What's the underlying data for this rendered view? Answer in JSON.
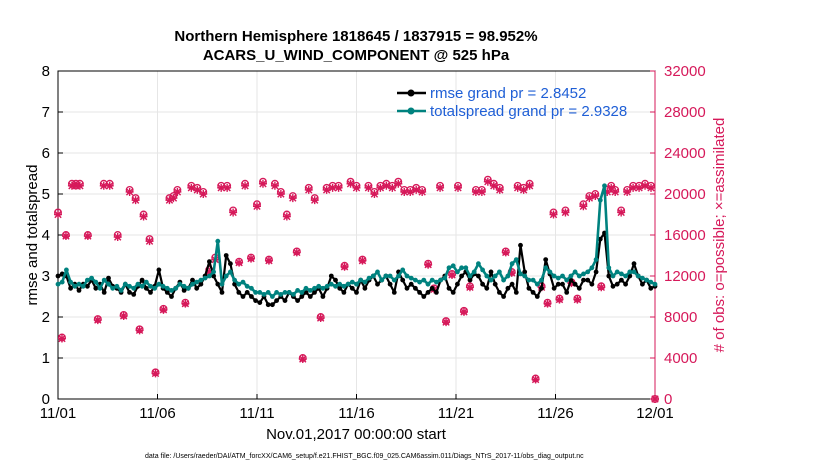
{
  "colors": {
    "rmse": "#000000",
    "spread": "#00827f",
    "obs": "#d6195a",
    "legend_text": "#1f5fd6",
    "axis": "#000000",
    "grid": "#e6e6e6"
  },
  "chart_data": {
    "type": "line",
    "title_line1": "Northern Hemisphere 1818645 / 1837915 = 98.952%",
    "title_line2": "ACARS_U_WIND_COMPONENT @ 525 hPa",
    "xlabel": "Nov.01,2017 00:00:00 start",
    "ylabel": "rmse and totalspread",
    "ylabel_right": "# of obs: o=possible; ×=assimilated",
    "xlim": [
      0,
      30
    ],
    "ylim": [
      0,
      8
    ],
    "ylim_right": [
      0,
      32000
    ],
    "xticks": [
      0,
      5,
      10,
      15,
      20,
      25,
      30
    ],
    "xtick_labels": [
      "11/01",
      "11/06",
      "11/11",
      "11/16",
      "11/21",
      "11/26",
      "12/01"
    ],
    "yticks": [
      0,
      1,
      2,
      3,
      4,
      5,
      6,
      7,
      8
    ],
    "yticks_right": [
      0,
      4000,
      8000,
      12000,
      16000,
      20000,
      24000,
      28000,
      32000
    ],
    "grid": true,
    "legend_position": "top-right",
    "series": [
      {
        "name": "rmse grand pr = 2.8452",
        "values": [
          3.0,
          3.05,
          3.0,
          2.7,
          2.8,
          2.65,
          2.8,
          2.75,
          2.9,
          2.7,
          2.8,
          2.6,
          2.95,
          2.75,
          2.7,
          2.6,
          2.8,
          2.6,
          2.55,
          2.75,
          2.9,
          2.7,
          2.6,
          2.75,
          3.15,
          2.7,
          2.6,
          2.5,
          2.7,
          2.85,
          2.65,
          2.7,
          2.9,
          2.7,
          2.8,
          3.0,
          3.35,
          3.0,
          2.8,
          2.6,
          3.5,
          3.3,
          2.8,
          2.6,
          2.5,
          2.6,
          2.5,
          2.4,
          2.35,
          2.5,
          2.3,
          2.3,
          2.4,
          2.5,
          2.4,
          2.6,
          2.5,
          2.4,
          2.5,
          2.6,
          2.5,
          2.6,
          2.7,
          2.5,
          2.7,
          3.0,
          2.9,
          2.7,
          2.6,
          2.8,
          2.7,
          2.6,
          2.9,
          2.7,
          2.9,
          3.0,
          2.8,
          2.9,
          3.0,
          2.8,
          2.6,
          3.1,
          2.9,
          2.7,
          2.8,
          2.7,
          2.6,
          2.5,
          2.6,
          2.7,
          2.6,
          2.9,
          3.0,
          2.7,
          2.6,
          2.8,
          3.0,
          3.1,
          2.9,
          3.05,
          3.0,
          2.8,
          2.7,
          3.1,
          2.8,
          2.6,
          2.5,
          2.7,
          2.8,
          2.6,
          3.75,
          3.1,
          2.7,
          2.6,
          2.5,
          2.7,
          3.4,
          3.05,
          2.7,
          2.8,
          2.8,
          2.6,
          2.9,
          2.8,
          2.7,
          2.9,
          2.9,
          2.8,
          3.1,
          3.9,
          4.05,
          3.0,
          2.75,
          2.8,
          2.9,
          2.8,
          3.0,
          3.3,
          3.0,
          2.8,
          2.9,
          2.7,
          2.75
        ],
        "color": "#000000"
      },
      {
        "name": "totalspread grand pr = 2.9328",
        "values": [
          2.8,
          2.85,
          3.15,
          2.85,
          2.75,
          2.8,
          2.75,
          2.9,
          2.95,
          2.85,
          2.7,
          2.9,
          2.8,
          2.7,
          2.75,
          2.65,
          2.8,
          2.75,
          2.7,
          2.8,
          2.75,
          2.85,
          2.75,
          2.7,
          2.8,
          2.75,
          2.7,
          2.65,
          2.7,
          2.8,
          2.75,
          2.7,
          2.8,
          2.85,
          2.9,
          2.95,
          3.0,
          3.1,
          3.85,
          2.8,
          3.0,
          3.1,
          2.9,
          2.8,
          2.85,
          2.75,
          2.7,
          2.6,
          2.6,
          2.55,
          2.6,
          2.5,
          2.6,
          2.55,
          2.6,
          2.6,
          2.55,
          2.65,
          2.6,
          2.7,
          2.65,
          2.7,
          2.75,
          2.7,
          2.75,
          2.8,
          2.75,
          2.8,
          2.75,
          2.8,
          2.85,
          2.8,
          2.9,
          2.85,
          2.95,
          3.0,
          3.1,
          2.9,
          3.0,
          3.0,
          2.9,
          3.0,
          3.15,
          3.0,
          2.95,
          2.9,
          2.85,
          2.9,
          2.8,
          2.9,
          2.85,
          2.9,
          2.95,
          3.2,
          3.25,
          3.1,
          3.2,
          3.2,
          3.0,
          3.1,
          3.3,
          3.15,
          3.0,
          2.9,
          3.0,
          3.1,
          2.9,
          3.0,
          3.3,
          3.4,
          3.05,
          3.0,
          2.9,
          2.9,
          2.8,
          2.9,
          3.2,
          3.1,
          3.0,
          2.95,
          3.0,
          2.9,
          3.0,
          3.1,
          3.0,
          3.05,
          3.1,
          3.2,
          3.4,
          4.85,
          5.2,
          3.2,
          3.0,
          3.1,
          3.05,
          3.0,
          3.1,
          3.1,
          3.0,
          2.95,
          2.9,
          2.85,
          2.8
        ],
        "color": "#00827f"
      },
      {
        "name": "obs possible (o)",
        "axis": "right",
        "x": [
          0.0,
          0.2,
          0.4,
          0.7,
          0.9,
          1.1,
          1.5,
          2.0,
          2.3,
          2.6,
          3.0,
          3.3,
          3.6,
          3.9,
          4.1,
          4.3,
          4.6,
          4.9,
          5.3,
          5.6,
          5.8,
          6.0,
          6.4,
          6.7,
          7.0,
          7.3,
          7.6,
          7.9,
          8.2,
          8.5,
          8.8,
          9.1,
          9.4,
          9.7,
          10.0,
          10.3,
          10.6,
          10.9,
          11.2,
          11.5,
          11.8,
          12.0,
          12.3,
          12.6,
          12.9,
          13.2,
          13.5,
          13.8,
          14.1,
          14.4,
          14.7,
          15.0,
          15.3,
          15.6,
          15.9,
          16.2,
          16.5,
          16.8,
          17.1,
          17.4,
          17.7,
          18.0,
          18.3,
          18.6,
          18.9,
          19.2,
          19.5,
          19.8,
          20.1,
          20.4,
          20.7,
          21.0,
          21.3,
          21.6,
          21.9,
          22.2,
          22.5,
          22.8,
          23.1,
          23.4,
          23.7,
          24.0,
          24.3,
          24.6,
          24.9,
          25.2,
          25.5,
          25.8,
          26.1,
          26.4,
          26.7,
          27.0,
          27.3,
          27.6,
          27.8,
          28.0,
          28.3,
          28.6,
          28.9,
          29.2,
          29.5,
          29.8,
          30.0
        ],
        "values": [
          18200,
          6000,
          16000,
          21000,
          21000,
          21000,
          16000,
          7800,
          21000,
          21000,
          16000,
          8200,
          20400,
          19600,
          6800,
          18000,
          15600,
          2600,
          8800,
          19600,
          19800,
          20400,
          9400,
          20800,
          20600,
          20200,
          12600,
          13800,
          20800,
          20800,
          18400,
          13400,
          21000,
          13800,
          19000,
          21200,
          13600,
          21000,
          20200,
          18000,
          19800,
          14400,
          4000,
          20600,
          19600,
          8000,
          20600,
          20800,
          20800,
          13000,
          21200,
          20800,
          13600,
          20800,
          20200,
          20800,
          21000,
          20800,
          21200,
          20400,
          20400,
          20600,
          20400,
          13200,
          10800,
          20800,
          7600,
          12200,
          20800,
          8600,
          11000,
          20400,
          20400,
          21400,
          21000,
          20600,
          14400,
          12400,
          20800,
          20600,
          21000,
          2000,
          11000,
          9400,
          18200,
          9800,
          18400,
          11400,
          9800,
          19000,
          19800,
          20000,
          11000,
          20400,
          20800,
          20400,
          18400,
          20400,
          20800,
          20800,
          21000,
          20800,
          0
        ],
        "color": "#d6195a"
      },
      {
        "name": "obs assimilated (×)",
        "axis": "right",
        "x": [
          0.0,
          0.2,
          0.4,
          0.7,
          0.9,
          1.1,
          1.5,
          2.0,
          2.3,
          2.6,
          3.0,
          3.3,
          3.6,
          3.9,
          4.1,
          4.3,
          4.6,
          4.9,
          5.3,
          5.6,
          5.8,
          6.0,
          6.4,
          6.7,
          7.0,
          7.3,
          7.6,
          7.9,
          8.2,
          8.5,
          8.8,
          9.1,
          9.4,
          9.7,
          10.0,
          10.3,
          10.6,
          10.9,
          11.2,
          11.5,
          11.8,
          12.0,
          12.3,
          12.6,
          12.9,
          13.2,
          13.5,
          13.8,
          14.1,
          14.4,
          14.7,
          15.0,
          15.3,
          15.6,
          15.9,
          16.2,
          16.5,
          16.8,
          17.1,
          17.4,
          17.7,
          18.0,
          18.3,
          18.6,
          18.9,
          19.2,
          19.5,
          19.8,
          20.1,
          20.4,
          20.7,
          21.0,
          21.3,
          21.6,
          21.9,
          22.2,
          22.5,
          22.8,
          23.1,
          23.4,
          23.7,
          24.0,
          24.3,
          24.6,
          24.9,
          25.2,
          25.5,
          25.8,
          26.1,
          26.4,
          26.7,
          27.0,
          27.3,
          27.6,
          27.8,
          28.0,
          28.3,
          28.6,
          28.9,
          29.2,
          29.5,
          29.8,
          30.0
        ],
        "values": [
          18000,
          5900,
          15900,
          20800,
          20800,
          20800,
          15900,
          7700,
          20800,
          20800,
          15800,
          8100,
          20200,
          19400,
          6700,
          17800,
          15400,
          2500,
          8700,
          19400,
          19600,
          20200,
          9300,
          20600,
          20400,
          20000,
          12400,
          13600,
          20600,
          20600,
          18200,
          13300,
          20800,
          13700,
          18800,
          21000,
          13500,
          20800,
          20000,
          17800,
          19600,
          14300,
          3900,
          20400,
          19400,
          7900,
          20400,
          20600,
          20600,
          12900,
          21000,
          20600,
          13500,
          20600,
          20000,
          20600,
          20800,
          20600,
          21000,
          20200,
          20200,
          20400,
          20200,
          13100,
          10700,
          20600,
          7500,
          12100,
          20600,
          8500,
          10900,
          20200,
          20200,
          21200,
          20800,
          20400,
          14300,
          12300,
          20600,
          20400,
          20800,
          1900,
          10900,
          9300,
          18000,
          9700,
          18200,
          11300,
          9700,
          18800,
          19600,
          19800,
          10900,
          20200,
          20600,
          20200,
          18200,
          20200,
          20600,
          20600,
          20800,
          20600,
          0
        ],
        "color": "#d6195a"
      }
    ],
    "footnote": "data file: /Users/raeder/DAI/ATM_forcXX/CAM6_setup/f.e21.FHIST_BGC.f09_025.CAM6assim.011/Diags_NTrS_2017-11/obs_diag_output.nc"
  }
}
